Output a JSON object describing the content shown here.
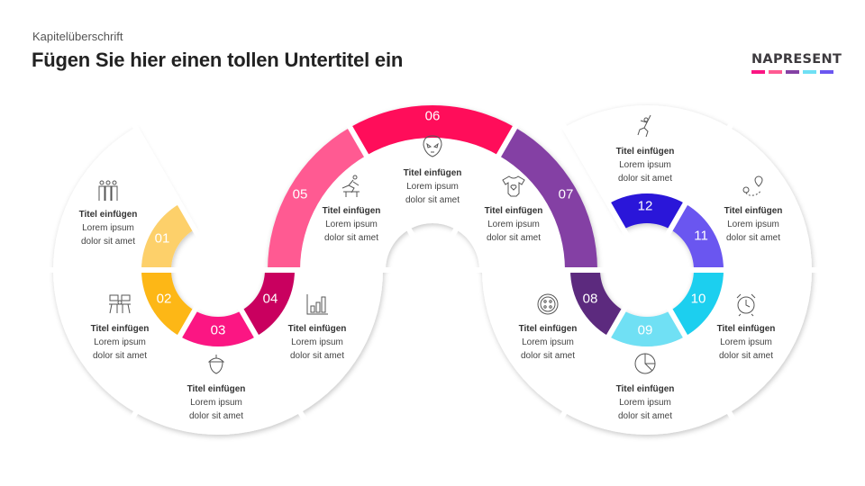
{
  "header": {
    "kicker": "Kapitelüberschrift",
    "title": "Fügen Sie hier einen tollen Untertitel ein"
  },
  "logo": {
    "text": "NAPRESENT",
    "bar_colors": [
      "#fb1583",
      "#ff5a92",
      "#8441a4",
      "#6fe0f4",
      "#6b57f0"
    ]
  },
  "segments": [
    {
      "number": "01",
      "title": "Titel einfügen",
      "line1": "Lorem ipsum",
      "line2": "dolor sit amet",
      "color": "#fdd06a",
      "icon": "people-group-icon"
    },
    {
      "number": "02",
      "title": "Titel einfügen",
      "line1": "Lorem ipsum",
      "line2": "dolor sit amet",
      "color": "#fdb713",
      "icon": "meeting-table-icon"
    },
    {
      "number": "03",
      "title": "Titel einfügen",
      "line1": "Lorem ipsum",
      "line2": "dolor sit amet",
      "color": "#fb1583",
      "icon": "acorn-icon"
    },
    {
      "number": "04",
      "title": "Titel einfügen",
      "line1": "Lorem ipsum",
      "line2": "dolor sit amet",
      "color": "#c9005f",
      "icon": "bar-chart-icon"
    },
    {
      "number": "05",
      "title": "Titel einfügen",
      "line1": "Lorem ipsum",
      "line2": "dolor sit amet",
      "color": "#ff5a92",
      "icon": "hurdle-runner-icon"
    },
    {
      "number": "06",
      "title": "Titel einfügen",
      "line1": "Lorem ipsum",
      "line2": "dolor sit amet",
      "color": "#ff0a5a",
      "icon": "alien-icon"
    },
    {
      "number": "07",
      "title": "Titel einfügen",
      "line1": "Lorem ipsum",
      "line2": "dolor sit amet",
      "color": "#8441a4",
      "icon": "baby-onesie-icon"
    },
    {
      "number": "08",
      "title": "Titel einfügen",
      "line1": "Lorem ipsum",
      "line2": "dolor sit amet",
      "color": "#5b2a7e",
      "icon": "button-icon"
    },
    {
      "number": "09",
      "title": "Titel einfügen",
      "line1": "Lorem ipsum",
      "line2": "dolor sit amet",
      "color": "#6fe0f4",
      "icon": "pie-chart-icon"
    },
    {
      "number": "10",
      "title": "Titel einfügen",
      "line1": "Lorem ipsum",
      "line2": "dolor sit amet",
      "color": "#1ccfef",
      "icon": "alarm-clock-icon"
    },
    {
      "number": "11",
      "title": "Titel einfügen",
      "line1": "Lorem ipsum",
      "line2": "dolor sit amet",
      "color": "#6b57f0",
      "icon": "map-pin-route-icon"
    },
    {
      "number": "12",
      "title": "Titel einfügen",
      "line1": "Lorem ipsum",
      "line2": "dolor sit amet",
      "color": "#2a19d9",
      "icon": "climber-icon"
    }
  ]
}
